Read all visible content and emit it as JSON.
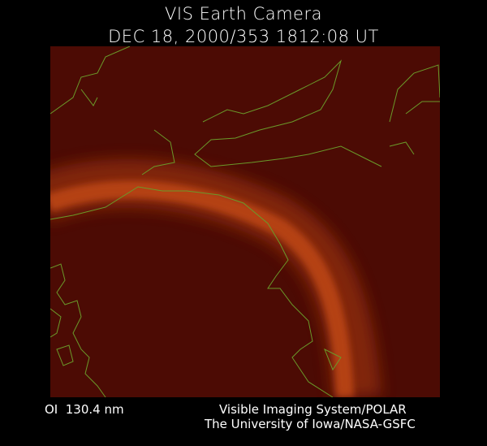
{
  "header": {
    "title": "VIS Earth Camera",
    "subtitle": "DEC 18, 2000/353 1812:08 UT"
  },
  "footer": {
    "filter": "OI  130.4 nm",
    "instrument": "Visible Imaging System/POLAR",
    "institution": "The University of Iowa/NASA-GSFC"
  }
}
